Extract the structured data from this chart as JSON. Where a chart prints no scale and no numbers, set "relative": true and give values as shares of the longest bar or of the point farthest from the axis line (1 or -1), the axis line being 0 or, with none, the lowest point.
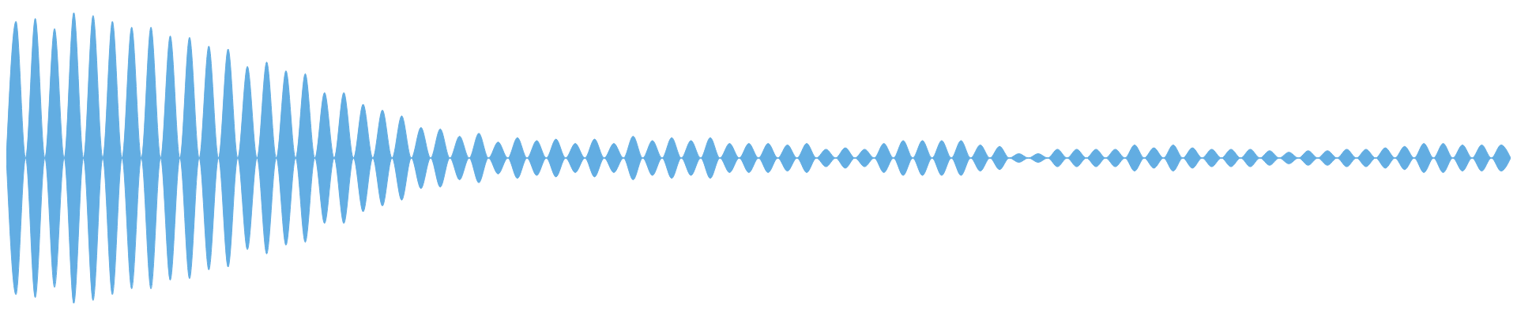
{
  "chart_data": {
    "type": "area",
    "relative": true,
    "categories": [
      null,
      null,
      null,
      null,
      null,
      null,
      null,
      null,
      null,
      null,
      null,
      null,
      null,
      null,
      null,
      null,
      null,
      null,
      null,
      null,
      null,
      null,
      null,
      null,
      null,
      null,
      null,
      null,
      null,
      null,
      null,
      null,
      null,
      null,
      null,
      null,
      null,
      null,
      null,
      null,
      null,
      null,
      null,
      null,
      null,
      null,
      null,
      null,
      null,
      null,
      null,
      null,
      null,
      null,
      null,
      null,
      null,
      null,
      null,
      null,
      null,
      null,
      null,
      null,
      null,
      null,
      null,
      null,
      null,
      null,
      null,
      null,
      null,
      null,
      null,
      null,
      null,
      null,
      null,
      null,
      null,
      null,
      null,
      null,
      null,
      null,
      null,
      null,
      null,
      null,
      null,
      null,
      null,
      null,
      null,
      null,
      null,
      null,
      null,
      null,
      null,
      null,
      null,
      null,
      null,
      null,
      null,
      null,
      null,
      null,
      null,
      null,
      null,
      null,
      null,
      null,
      null,
      null,
      null,
      null,
      null,
      null,
      null,
      null,
      null,
      null,
      null,
      null,
      null,
      null,
      null,
      null,
      null,
      null,
      null,
      null,
      null,
      null,
      null,
      null,
      null,
      null,
      null,
      null,
      null,
      null,
      null,
      null,
      null,
      null,
      null,
      null,
      null,
      null,
      null,
      null,
      null
    ],
    "series": [
      {
        "color": "#62ade2",
        "values": [
          0,
          0.94,
          0,
          0.96,
          0,
          0.89,
          0,
          1,
          0,
          0.98,
          0,
          0.94,
          0,
          0.9,
          0,
          0.9,
          0,
          0.84,
          0,
          0.83,
          0,
          0.77,
          0,
          0.75,
          0,
          0.63,
          0,
          0.66,
          0,
          0.6,
          0,
          0.58,
          0,
          0.45,
          0,
          0.45,
          0,
          0.37,
          0,
          0.33,
          0,
          0.29,
          0,
          0.21,
          0,
          0.2,
          0,
          0.15,
          0,
          0.17,
          0,
          0.11,
          0,
          0.14,
          0,
          0.12,
          0,
          0.13,
          0,
          0.1,
          0,
          0.13,
          0,
          0.1,
          0,
          0.15,
          0,
          0.12,
          0,
          0.14,
          0,
          0.12,
          0,
          0.14,
          0,
          0.1,
          0,
          0.1,
          0,
          0.1,
          0,
          0.09,
          0,
          0.1,
          0,
          0.06,
          0,
          0.07,
          0,
          0.06,
          0,
          0.1,
          0,
          0.12,
          0,
          0.12,
          0,
          0.12,
          0,
          0.12,
          0,
          0.09,
          0,
          0.08,
          0,
          0.03,
          0,
          0.03,
          0,
          0.06,
          0,
          0.06,
          0,
          0.06,
          0,
          0.06,
          0,
          0.09,
          0,
          0.07,
          0,
          0.09,
          0,
          0.07,
          0,
          0.06,
          0,
          0.06,
          0,
          0.06,
          0,
          0.05,
          0,
          0.04,
          0,
          0.05,
          0,
          0.05,
          0,
          0.06,
          0,
          0.06,
          0,
          0.07,
          0,
          0.08,
          0,
          0.1,
          0,
          0.1,
          0,
          0.09,
          0,
          0.09,
          0,
          0.09,
          0
        ]
      },
      {
        "color": "#62ade3",
        "values": [
          0,
          -0.94,
          0,
          -0.96,
          0,
          -0.89,
          0,
          -1,
          0,
          -0.98,
          0,
          -0.94,
          0,
          -0.9,
          0,
          -0.9,
          0,
          -0.84,
          0,
          -0.83,
          0,
          -0.77,
          0,
          -0.75,
          0,
          -0.63,
          0,
          -0.66,
          0,
          -0.6,
          0,
          -0.58,
          0,
          -0.45,
          0,
          -0.45,
          0,
          -0.37,
          0,
          -0.33,
          0,
          -0.29,
          0,
          -0.21,
          0,
          -0.2,
          0,
          -0.15,
          0,
          -0.17,
          0,
          -0.11,
          0,
          -0.14,
          0,
          -0.12,
          0,
          -0.13,
          0,
          -0.1,
          0,
          -0.13,
          0,
          -0.1,
          0,
          -0.15,
          0,
          -0.12,
          0,
          -0.14,
          0,
          -0.12,
          0,
          -0.14,
          0,
          -0.1,
          0,
          -0.1,
          0,
          -0.1,
          0,
          -0.09,
          0,
          -0.1,
          0,
          -0.06,
          0,
          -0.07,
          0,
          -0.06,
          0,
          -0.1,
          0,
          -0.12,
          0,
          -0.12,
          0,
          -0.12,
          0,
          -0.12,
          0,
          -0.09,
          0,
          -0.08,
          0,
          -0.03,
          0,
          -0.03,
          0,
          -0.06,
          0,
          -0.06,
          0,
          -0.06,
          0,
          -0.06,
          0,
          -0.09,
          0,
          -0.07,
          0,
          -0.09,
          0,
          -0.07,
          0,
          -0.06,
          0,
          -0.06,
          0,
          -0.06,
          0,
          -0.05,
          0,
          -0.04,
          0,
          -0.05,
          0,
          -0.05,
          0,
          -0.06,
          0,
          -0.06,
          0,
          -0.07,
          0,
          -0.08,
          0,
          -0.1,
          0,
          -0.1,
          0,
          -0.09,
          0,
          -0.09,
          0,
          -0.09,
          0
        ]
      }
    ]
  }
}
